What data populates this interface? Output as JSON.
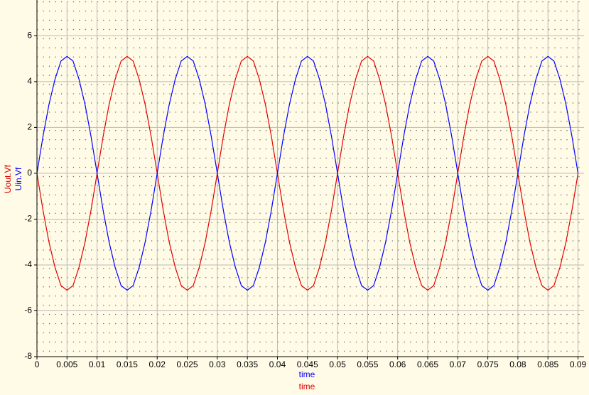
{
  "chart_data": {
    "type": "line",
    "x": [
      0,
      0.001,
      0.002,
      0.003,
      0.004,
      0.005,
      0.006,
      0.007,
      0.008,
      0.009,
      0.01,
      0.011,
      0.012,
      0.013,
      0.014,
      0.015,
      0.016,
      0.017,
      0.018,
      0.019,
      0.02,
      0.021,
      0.022,
      0.023,
      0.024,
      0.025,
      0.026,
      0.027,
      0.028,
      0.029,
      0.03,
      0.031,
      0.032,
      0.033,
      0.034,
      0.035,
      0.036,
      0.037,
      0.038,
      0.039,
      0.04,
      0.041,
      0.042,
      0.043,
      0.044,
      0.045,
      0.046,
      0.047,
      0.048,
      0.049,
      0.05,
      0.051,
      0.052,
      0.053,
      0.054,
      0.055,
      0.056,
      0.057,
      0.058,
      0.059,
      0.06,
      0.061,
      0.062,
      0.063,
      0.064,
      0.065,
      0.066,
      0.067,
      0.068,
      0.069,
      0.07,
      0.071,
      0.072,
      0.073,
      0.074,
      0.075,
      0.076,
      0.077,
      0.078,
      0.079,
      0.08,
      0.081,
      0.082,
      0.083,
      0.084,
      0.085,
      0.086,
      0.087,
      0.088,
      0.089,
      0.09
    ],
    "series": [
      {
        "name": "Uin.Vf",
        "color": "#0000ff",
        "values": [
          0,
          1.6,
          3.0,
          4.1,
          4.9,
          5.1,
          4.9,
          4.1,
          3.0,
          1.6,
          0,
          -1.6,
          -3.0,
          -4.1,
          -4.9,
          -5.1,
          -4.9,
          -4.1,
          -3.0,
          -1.6,
          0,
          1.6,
          3.0,
          4.1,
          4.9,
          5.1,
          4.9,
          4.1,
          3.0,
          1.6,
          0,
          -1.6,
          -3.0,
          -4.1,
          -4.9,
          -5.1,
          -4.9,
          -4.1,
          -3.0,
          -1.6,
          0,
          1.6,
          3.0,
          4.1,
          4.9,
          5.1,
          4.9,
          4.1,
          3.0,
          1.6,
          0,
          -1.6,
          -3.0,
          -4.1,
          -4.9,
          -5.1,
          -4.9,
          -4.1,
          -3.0,
          -1.6,
          0,
          1.6,
          3.0,
          4.1,
          4.9,
          5.1,
          4.9,
          4.1,
          3.0,
          1.6,
          0,
          -1.6,
          -3.0,
          -4.1,
          -4.9,
          -5.1,
          -4.9,
          -4.1,
          -3.0,
          -1.6,
          0,
          1.6,
          3.0,
          4.1,
          4.9,
          5.1,
          4.9,
          4.1,
          3.0,
          1.6,
          0
        ]
      },
      {
        "name": "Uout.Vf",
        "color": "#e00000",
        "values": [
          0,
          -1.6,
          -3.0,
          -4.1,
          -4.9,
          -5.1,
          -4.9,
          -4.1,
          -3.0,
          -1.6,
          0,
          1.6,
          3.0,
          4.1,
          4.9,
          5.1,
          4.9,
          4.1,
          3.0,
          1.6,
          0,
          -1.6,
          -3.0,
          -4.1,
          -4.9,
          -5.1,
          -4.9,
          -4.1,
          -3.0,
          -1.6,
          0,
          1.6,
          3.0,
          4.1,
          4.9,
          5.1,
          4.9,
          4.1,
          3.0,
          1.6,
          0,
          -1.6,
          -3.0,
          -4.1,
          -4.9,
          -5.1,
          -4.9,
          -4.1,
          -3.0,
          -1.6,
          0,
          1.6,
          3.0,
          4.1,
          4.9,
          5.1,
          4.9,
          4.1,
          3.0,
          1.6,
          0,
          -1.6,
          -3.0,
          -4.1,
          -4.9,
          -5.1,
          -4.9,
          -4.1,
          -3.0,
          -1.6,
          0,
          1.6,
          3.0,
          4.1,
          4.9,
          5.1,
          4.9,
          4.1,
          3.0,
          1.6,
          0,
          -1.6,
          -3.0,
          -4.1,
          -4.9,
          -5.1,
          -4.9,
          -4.1,
          -3.0,
          -1.6,
          0
        ]
      }
    ],
    "xlabels": [
      "time",
      "time"
    ],
    "xlim": [
      0,
      0.091
    ],
    "xticks": [
      0,
      0.005,
      0.01,
      0.015,
      0.02,
      0.025,
      0.03,
      0.035,
      0.04,
      0.045,
      0.05,
      0.055,
      0.06,
      0.065,
      0.07,
      0.075,
      0.08,
      0.085,
      0.09
    ],
    "ylim": [
      -8,
      7.5
    ],
    "yticks": [
      -8,
      -6,
      -4,
      -2,
      0,
      2,
      4,
      6
    ],
    "grid": true
  }
}
